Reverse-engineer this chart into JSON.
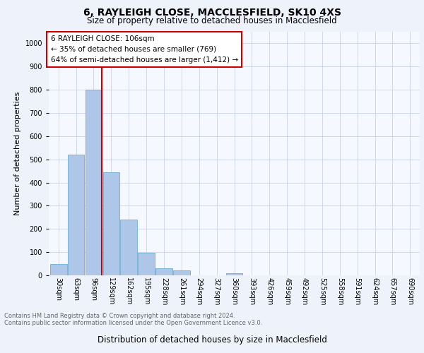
{
  "title1": "6, RAYLEIGH CLOSE, MACCLESFIELD, SK10 4XS",
  "title2": "Size of property relative to detached houses in Macclesfield",
  "xlabel": "Distribution of detached houses by size in Macclesfield",
  "ylabel": "Number of detached properties",
  "bin_labels": [
    "30sqm",
    "63sqm",
    "96sqm",
    "129sqm",
    "162sqm",
    "195sqm",
    "228sqm",
    "261sqm",
    "294sqm",
    "327sqm",
    "360sqm",
    "393sqm",
    "426sqm",
    "459sqm",
    "492sqm",
    "525sqm",
    "558sqm",
    "591sqm",
    "624sqm",
    "657sqm",
    "690sqm"
  ],
  "bar_heights": [
    50,
    520,
    800,
    445,
    240,
    98,
    30,
    20,
    0,
    0,
    10,
    0,
    0,
    0,
    0,
    0,
    0,
    0,
    0,
    0,
    0
  ],
  "bar_color": "#aec6e8",
  "bar_edge_color": "#6baed6",
  "vline_color": "#cc0000",
  "annotation_text": "6 RAYLEIGH CLOSE: 106sqm\n← 35% of detached houses are smaller (769)\n64% of semi-detached houses are larger (1,412) →",
  "annotation_box_color": "#ffffff",
  "annotation_box_edge": "#cc0000",
  "ylim": [
    0,
    1050
  ],
  "yticks": [
    0,
    100,
    200,
    300,
    400,
    500,
    600,
    700,
    800,
    900,
    1000
  ],
  "footer_text": "Contains HM Land Registry data © Crown copyright and database right 2024.\nContains public sector information licensed under the Open Government Licence v3.0.",
  "bg_color": "#eef2fb",
  "plot_bg_color": "#f5f8fe",
  "grid_color": "#c8d4e8",
  "title1_fontsize": 10,
  "title2_fontsize": 8.5,
  "ylabel_fontsize": 8,
  "xlabel_fontsize": 8.5,
  "tick_fontsize": 7,
  "ann_fontsize": 7.5,
  "footer_fontsize": 6
}
